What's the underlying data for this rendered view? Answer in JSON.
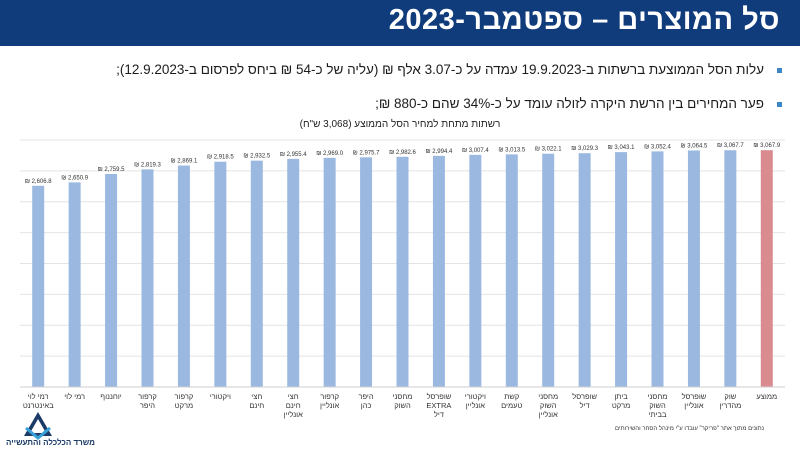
{
  "header": {
    "title": "סל המוצרים – ספטמבר-2023"
  },
  "bullets": [
    "עלות הסל הממוצעת ברשתות ב-19.9.2023 עמדה על כ-3.07 אלף ₪ (עליה של כ-54 ₪ ביחס לפרסום ב-12.9.2023);",
    "פער המחירים בין הרשת היקרה לזולה עומד על כ-34% שהם כ-880 ₪;"
  ],
  "colors": {
    "header": "#103c7c",
    "bar": "#9bb9e0",
    "average_bar": "#d98b90",
    "bullet": "#3b86c7"
  },
  "chart_data": {
    "type": "bar",
    "title": "רשתות מתחת למחיר הסל הממוצע (3,068 ש\"ח)",
    "grid": true,
    "ylim": [
      0,
      3200
    ],
    "categories": [
      "רמי לוי באינטרנט",
      "רמי לוי",
      "יוחננוף",
      "קרפור היפר",
      "קרפור מרקט",
      "ויקטורי",
      "חצי חינם",
      "חצי חינם אונליין",
      "קרפור אונליין",
      "היפר כהן",
      "מחסני השוק",
      "שופרסל EXTRA דיל",
      "ויקטורי אונליין",
      "קשת טעמים",
      "מחסני השוק אונליין",
      "שופרסל דיל",
      "ביתן מרקט",
      "מחסני השוק בביתי",
      "שופרסל אונליין",
      "שוק מהדרין",
      "ממוצע"
    ],
    "values": [
      2606.8,
      2650.9,
      2759.5,
      2819.3,
      2869.1,
      2918.5,
      2932.5,
      2955.4,
      2969.0,
      2975.7,
      2982.6,
      2994.4,
      3007.4,
      3013.5,
      3022.1,
      3029.3,
      3043.1,
      3052.4,
      3064.5,
      3067.7,
      3067.9
    ],
    "data_labels": [
      "₪ 2,606.8",
      "₪ 2,650.9",
      "₪ 2,759.5",
      "₪ 2,819.3",
      "₪ 2,869.1",
      "₪ 2,918.5",
      "₪ 2,932.5",
      "₪ 2,955.4",
      "₪ 2,969.0",
      "₪ 2,975.7",
      "₪ 2,982.6",
      "₪ 2,994.4",
      "₪ 3,007.4",
      "₪ 3,013.5",
      "₪ 3,022.1",
      "₪ 3,029.3",
      "₪ 3,043.1",
      "₪ 3,052.4",
      "₪ 3,064.5",
      "₪ 3,067.7",
      "₪ 3,067.9"
    ],
    "highlight_category": "ממוצע"
  },
  "footer": {
    "source": "נתונים מתוך אתר \"פריקר\" עובדו ע\"י מינהל הסחר והשירותים",
    "ministry": "משרד הכלכלה והתעשייה"
  }
}
